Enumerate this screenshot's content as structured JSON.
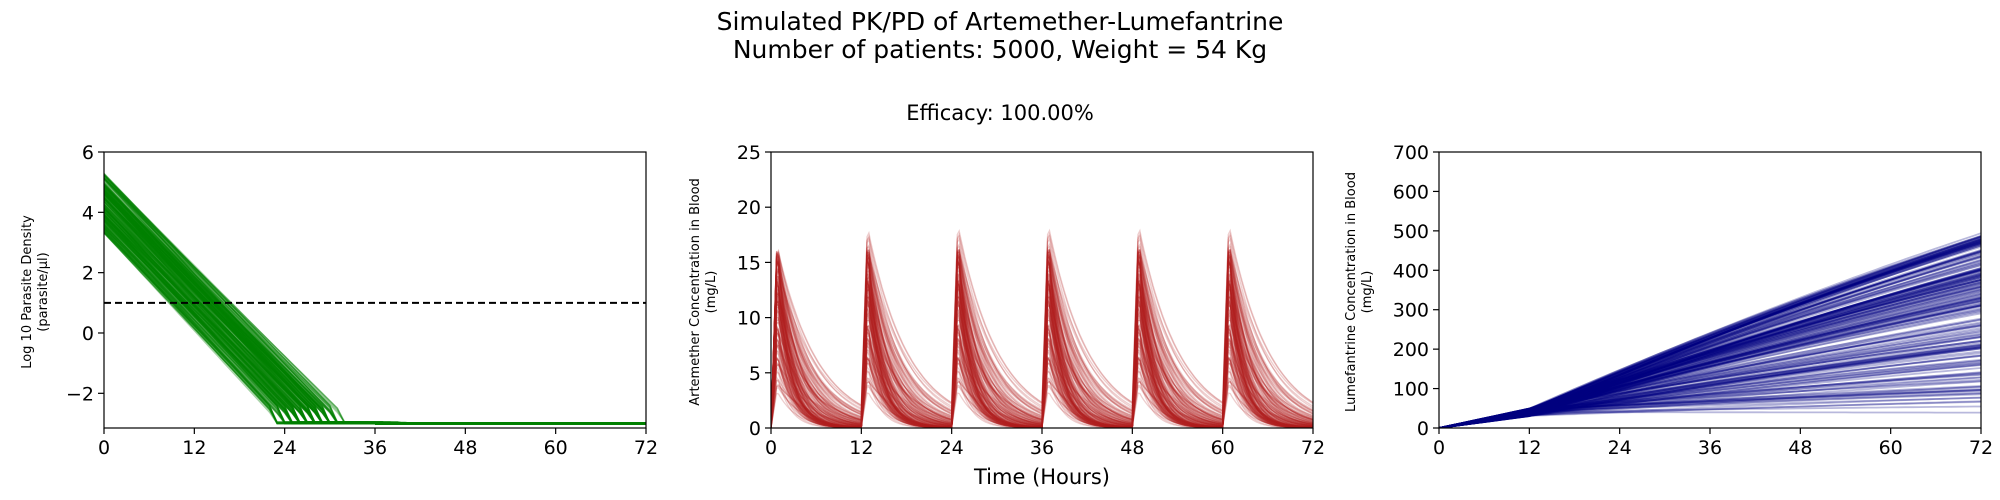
{
  "figure": {
    "title": "Simulated PK/PD of Artemether-Lumefantrine",
    "subtitle": "Number of patients: 5000, Weight = 54 Kg",
    "efficacy_label": "Efficacy: 100.00%",
    "shared_xlabel": "Time (Hours)"
  },
  "chart_data": [
    {
      "type": "line",
      "panel": "parasite",
      "ylabel_line1": "Log 10 Parasite Density",
      "ylabel_line2": "(parasite/µl)",
      "xlim": [
        0,
        72
      ],
      "ylim": [
        -3.15,
        6
      ],
      "xticks": [
        0,
        12,
        24,
        36,
        48,
        60,
        72
      ],
      "xtick_labels": [
        "0",
        "12",
        "24",
        "36",
        "48",
        "60",
        "72"
      ],
      "yticks": [
        -2,
        0,
        2,
        4,
        6
      ],
      "ytick_labels": [
        "−2",
        "0",
        "2",
        "4",
        "6"
      ],
      "threshold": 1,
      "threshold_style": "dashed",
      "floor": -3,
      "color": "#008000",
      "series_ensemble": {
        "count_shown": "5000 patients (representative subset drawn)",
        "initial_range": [
          3.3,
          5.3
        ],
        "slope_range": [
          -0.28,
          -0.24
        ],
        "floor_time_range": [
          21,
          38
        ]
      }
    },
    {
      "type": "line",
      "panel": "artemether",
      "ylabel_line1": "Artemether Concentration in Blood",
      "ylabel_line2": "(mg/L)",
      "xlim": [
        0,
        72
      ],
      "ylim": [
        0,
        25
      ],
      "xticks": [
        0,
        12,
        24,
        36,
        48,
        60,
        72
      ],
      "xtick_labels": [
        "0",
        "12",
        "24",
        "36",
        "48",
        "60",
        "72"
      ],
      "yticks": [
        0,
        5,
        10,
        15,
        20,
        25
      ],
      "ytick_labels": [
        "0",
        "5",
        "10",
        "15",
        "20",
        "25"
      ],
      "color": "#b22222",
      "dose_times": [
        0,
        12,
        24,
        36,
        48,
        60
      ],
      "peak_range": [
        3,
        17.2
      ],
      "peak_delay_hours": 0.8
    },
    {
      "type": "line",
      "panel": "lumefantrine",
      "ylabel_line1": "Lumefantrine Concentration in Blood",
      "ylabel_line2": "(mg/L)",
      "xlim": [
        0,
        72
      ],
      "ylim": [
        0,
        700
      ],
      "xticks": [
        0,
        12,
        24,
        36,
        48,
        60,
        72
      ],
      "xtick_labels": [
        "0",
        "12",
        "24",
        "36",
        "48",
        "60",
        "72"
      ],
      "yticks": [
        0,
        100,
        200,
        300,
        400,
        500,
        600,
        700
      ],
      "ytick_labels": [
        "0",
        "100",
        "200",
        "300",
        "400",
        "500",
        "600",
        "700"
      ],
      "color": "#000080",
      "value_at_12h_range": [
        30,
        50
      ],
      "value_at_72h_range": [
        20,
        495
      ]
    }
  ]
}
